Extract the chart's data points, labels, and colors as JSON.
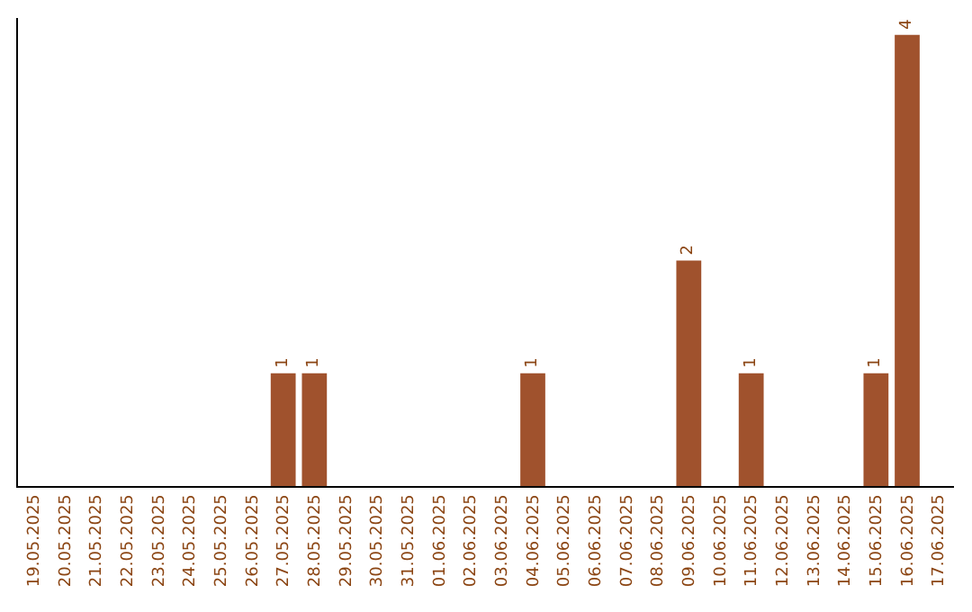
{
  "chart_data": {
    "type": "bar",
    "categories": [
      "19.05.2025",
      "20.05.2025",
      "21.05.2025",
      "22.05.2025",
      "23.05.2025",
      "24.05.2025",
      "25.05.2025",
      "26.05.2025",
      "27.05.2025",
      "28.05.2025",
      "29.05.2025",
      "30.05.2025",
      "31.05.2025",
      "01.06.2025",
      "02.06.2025",
      "03.06.2025",
      "04.06.2025",
      "05.06.2025",
      "06.06.2025",
      "07.06.2025",
      "08.06.2025",
      "09.06.2025",
      "10.06.2025",
      "11.06.2025",
      "12.06.2025",
      "13.06.2025",
      "14.06.2025",
      "15.06.2025",
      "16.06.2025",
      "17.06.2025"
    ],
    "values": [
      0,
      0,
      0,
      0,
      0,
      0,
      0,
      0,
      1,
      1,
      0,
      0,
      0,
      0,
      0,
      0,
      1,
      0,
      0,
      0,
      0,
      2,
      0,
      1,
      0,
      0,
      0,
      1,
      4,
      0
    ],
    "value_labels": [
      null,
      null,
      null,
      null,
      null,
      null,
      null,
      null,
      "1",
      "1",
      null,
      null,
      null,
      null,
      null,
      null,
      "1",
      null,
      null,
      null,
      null,
      "2",
      null,
      "1",
      null,
      null,
      null,
      "1",
      "4",
      null
    ],
    "color": "#a0522d",
    "ylim": [
      0,
      4.15
    ],
    "tick_labels": "x"
  }
}
